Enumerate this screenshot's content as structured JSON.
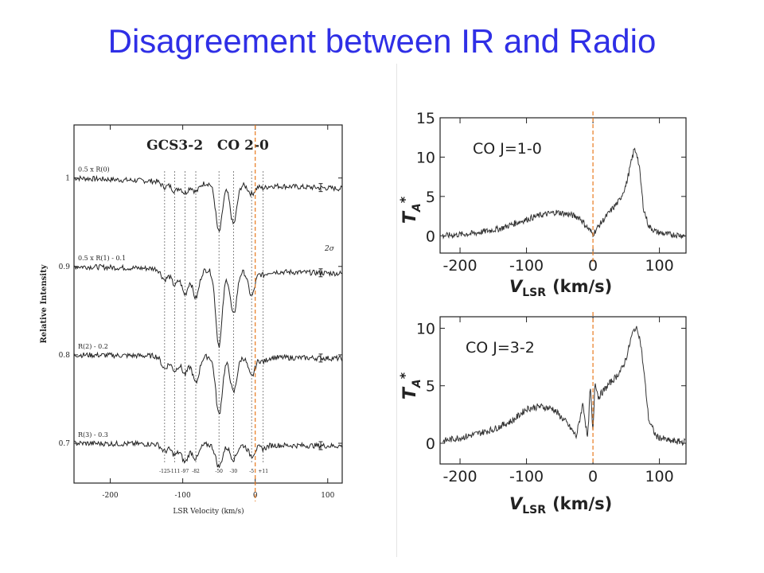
{
  "slide": {
    "title": "Disagreement between IR and Radio"
  },
  "colors": {
    "title": "#2f2fe6",
    "marker": "#e87a1e",
    "ink": "#222222"
  },
  "chart_data": [
    {
      "type": "line",
      "title": "GCS3-2   CO 2-0",
      "xlabel": "LSR Velocity (km/s)",
      "ylabel": "Relative Intensity",
      "xlim": [
        -250,
        120
      ],
      "ylim": [
        0.655,
        1.06
      ],
      "xticks": [
        "-200",
        "-100",
        "0",
        "100"
      ],
      "yticks": [
        "1",
        "0.9",
        "0.8",
        "0.7"
      ],
      "series": [
        {
          "name": "0.5 x R(0)",
          "baseline": 1.0
        },
        {
          "name": "0.5 x R(1) - 0.1",
          "baseline": 0.9
        },
        {
          "name": "R(2) - 0.2",
          "baseline": 0.8
        },
        {
          "name": "R(3) - 0.3",
          "baseline": 0.7
        }
      ],
      "absorption_velocities": [
        -125,
        -111,
        -97,
        -82,
        -50,
        -30,
        -5,
        11
      ],
      "velocity_labels": [
        "-125",
        "-111",
        "-97",
        "-82",
        "-50",
        "-30",
        "-5",
        "+11"
      ],
      "error_bar_label": "2σ",
      "marker_velocity": 0
    },
    {
      "type": "line",
      "annotation": "CO J=1-0",
      "xlabel_main": "V",
      "xlabel_sub": "LSR",
      "xlabel_unit": "(km/s)",
      "ylabel_main": "T",
      "ylabel_sub": "A",
      "ylabel_sup": "*",
      "xlim": [
        -230,
        140
      ],
      "ylim": [
        -2.2,
        15
      ],
      "xticks": [
        "-200",
        "-100",
        "0",
        "100"
      ],
      "yticks": [
        "0",
        "5",
        "10",
        "15"
      ],
      "x": [
        -225,
        -180,
        -140,
        -110,
        -80,
        -55,
        -35,
        -20,
        -10,
        0,
        10,
        25,
        40,
        50,
        58,
        62,
        66,
        70,
        76,
        84,
        95,
        110,
        130,
        140
      ],
      "y": [
        0,
        0.3,
        0.9,
        1.8,
        2.6,
        3.0,
        2.7,
        2.3,
        1.2,
        0.2,
        1.4,
        3.0,
        4.5,
        6.5,
        9.5,
        11.0,
        10.5,
        8.5,
        3.5,
        1.2,
        0.5,
        0.2,
        0.1,
        0
      ],
      "marker_velocity": 0
    },
    {
      "type": "line",
      "annotation": "CO J=3-2",
      "xlabel_main": "V",
      "xlabel_sub": "LSR",
      "xlabel_unit": "(km/s)",
      "ylabel_main": "T",
      "ylabel_sub": "A",
      "ylabel_sup": "*",
      "xlim": [
        -230,
        140
      ],
      "ylim": [
        -1.8,
        11
      ],
      "xticks": [
        "-200",
        "-100",
        "0",
        "100"
      ],
      "yticks": [
        "0",
        "5",
        "10"
      ],
      "x": [
        -225,
        -190,
        -150,
        -120,
        -100,
        -80,
        -60,
        -40,
        -25,
        -15,
        -8,
        -4,
        0,
        3,
        8,
        15,
        25,
        35,
        45,
        52,
        58,
        63,
        68,
        72,
        78,
        84,
        95,
        115,
        140
      ],
      "y": [
        0.2,
        0.6,
        1.2,
        2.0,
        3.0,
        3.2,
        3.0,
        1.8,
        0.6,
        3.5,
        0.3,
        5.0,
        0.8,
        5.5,
        4.0,
        4.5,
        5.2,
        5.8,
        6.6,
        7.8,
        9.3,
        10.0,
        9.8,
        8.6,
        5.5,
        2.0,
        0.6,
        0.2,
        0.1
      ],
      "marker_velocity": 0
    }
  ]
}
